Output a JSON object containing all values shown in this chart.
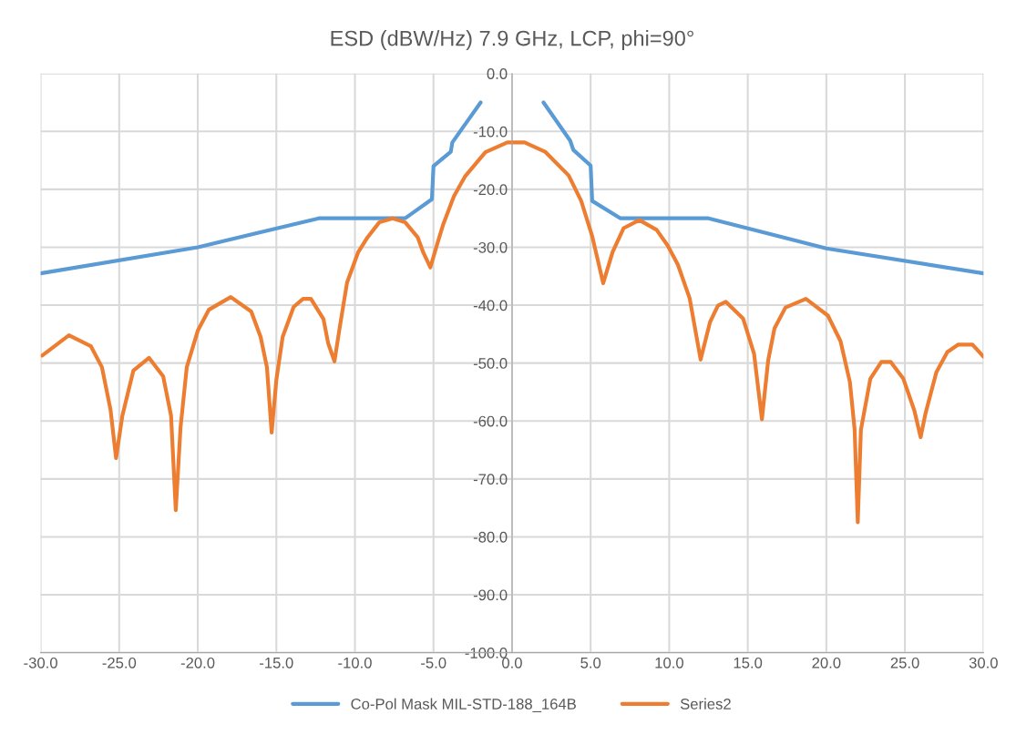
{
  "chart_data": {
    "type": "line",
    "title": "ESD (dBW/Hz) 7.9 GHz, LCP, phi=90°",
    "series": [
      {
        "name": "Co-Pol Mask MIL-STD-188_164B",
        "color": "#5b9bd5",
        "x": [
          -30,
          -20,
          -12.3,
          -6.8,
          -5.1,
          -5.0,
          -3.9,
          -3.8,
          -2.0
        ],
        "values": [
          -34.5,
          -30.0,
          -25.0,
          -25.0,
          -21.7,
          -16.0,
          -13.5,
          -11.9,
          -5.0
        ]
      },
      {
        "name": null,
        "color": "#5b9bd5",
        "x": [
          2.0,
          3.7,
          3.9,
          5.0,
          5.1,
          6.9,
          12.5,
          20,
          30
        ],
        "values": [
          -5.0,
          -11.6,
          -13.2,
          -15.9,
          -22.0,
          -25.0,
          -25.0,
          -30.2,
          -34.5
        ]
      },
      {
        "name": "Series2",
        "color": "#ed7d31",
        "x": [
          -29.9,
          -28.2,
          -26.8,
          -26.1,
          -25.55,
          -25.2,
          -24.8,
          -24.1,
          -23.1,
          -22.2,
          -21.7,
          -21.4,
          -21.1,
          -20.7,
          -20.0,
          -19.3,
          -17.9,
          -16.6,
          -16.0,
          -15.6,
          -15.3,
          -15.0,
          -14.6,
          -13.9,
          -13.3,
          -12.8,
          -12.0,
          -11.7,
          -11.3,
          -11.0,
          -10.5,
          -9.8,
          -9.2,
          -8.45,
          -7.6,
          -6.8,
          -6.0,
          -5.65,
          -5.2,
          -4.8,
          -4.4,
          -3.7,
          -3.0,
          -1.7,
          -0.3,
          0.8,
          2.1,
          3.6,
          4.4,
          5.1,
          5.8,
          6.4,
          7.1,
          8.1,
          9.2,
          9.9,
          10.55,
          11.3,
          12.0,
          12.6,
          13.1,
          13.6,
          14.7,
          15.4,
          15.9,
          16.3,
          16.7,
          17.4,
          18.7,
          20.1,
          20.9,
          21.5,
          21.8,
          22.0,
          22.2,
          22.8,
          23.5,
          24.1,
          24.9,
          25.6,
          26.0,
          26.3,
          27.0,
          27.7,
          28.4,
          29.3,
          30.0
        ],
        "values": [
          -48.7,
          -45.2,
          -47.1,
          -50.7,
          -58.1,
          -66.4,
          -59.1,
          -51.3,
          -49.1,
          -52.3,
          -59.1,
          -75.4,
          -61.2,
          -50.7,
          -44.4,
          -40.8,
          -38.6,
          -41.1,
          -45.5,
          -50.7,
          -62.0,
          -52.9,
          -45.5,
          -40.3,
          -38.9,
          -38.9,
          -42.4,
          -46.6,
          -49.7,
          -44.4,
          -36.1,
          -30.9,
          -28.3,
          -25.7,
          -25.0,
          -25.7,
          -28.3,
          -30.9,
          -33.5,
          -29.8,
          -26.2,
          -21.2,
          -17.8,
          -13.6,
          -11.9,
          -11.9,
          -13.5,
          -17.6,
          -22.0,
          -28.1,
          -36.2,
          -30.8,
          -26.7,
          -25.3,
          -27.0,
          -29.7,
          -33.0,
          -38.8,
          -49.4,
          -42.9,
          -40.1,
          -39.4,
          -42.3,
          -48.4,
          -59.7,
          -49.5,
          -44.0,
          -40.4,
          -38.9,
          -41.8,
          -46.2,
          -53.3,
          -61.5,
          -77.5,
          -61.5,
          -52.7,
          -49.8,
          -49.8,
          -52.7,
          -58.2,
          -62.8,
          -58.8,
          -51.6,
          -48.1,
          -46.8,
          -46.8,
          -48.9
        ]
      }
    ],
    "xlim": [
      -30,
      30
    ],
    "ylim": [
      -100,
      0
    ],
    "xticks": [
      {
        "value": -30,
        "label": "-30.0"
      },
      {
        "value": -25,
        "label": "-25.0"
      },
      {
        "value": -20,
        "label": "-20.0"
      },
      {
        "value": -15,
        "label": "-15.0"
      },
      {
        "value": -10,
        "label": "-10.0"
      },
      {
        "value": -5,
        "label": "-5.0"
      },
      {
        "value": 0,
        "label": "0.0"
      },
      {
        "value": 5,
        "label": "5.0"
      },
      {
        "value": 10,
        "label": "10.0"
      },
      {
        "value": 15,
        "label": "15.0"
      },
      {
        "value": 20,
        "label": "20.0"
      },
      {
        "value": 25,
        "label": "25.0"
      },
      {
        "value": 30,
        "label": "30.0"
      }
    ],
    "yticks": [
      {
        "value": 0,
        "label": "0.0"
      },
      {
        "value": -10,
        "label": "-10.0"
      },
      {
        "value": -20,
        "label": "-20.0"
      },
      {
        "value": -30,
        "label": "-30.0"
      },
      {
        "value": -40,
        "label": "-40.0"
      },
      {
        "value": -50,
        "label": "-50.0"
      },
      {
        "value": -60,
        "label": "-60.0"
      },
      {
        "value": -70,
        "label": "-70.0"
      },
      {
        "value": -80,
        "label": "-80.0"
      },
      {
        "value": -90,
        "label": "-90.0"
      },
      {
        "value": -100,
        "label": "-100.0"
      }
    ],
    "grid": true,
    "legend": "bottom",
    "marker": "none",
    "line_style": "solid"
  }
}
